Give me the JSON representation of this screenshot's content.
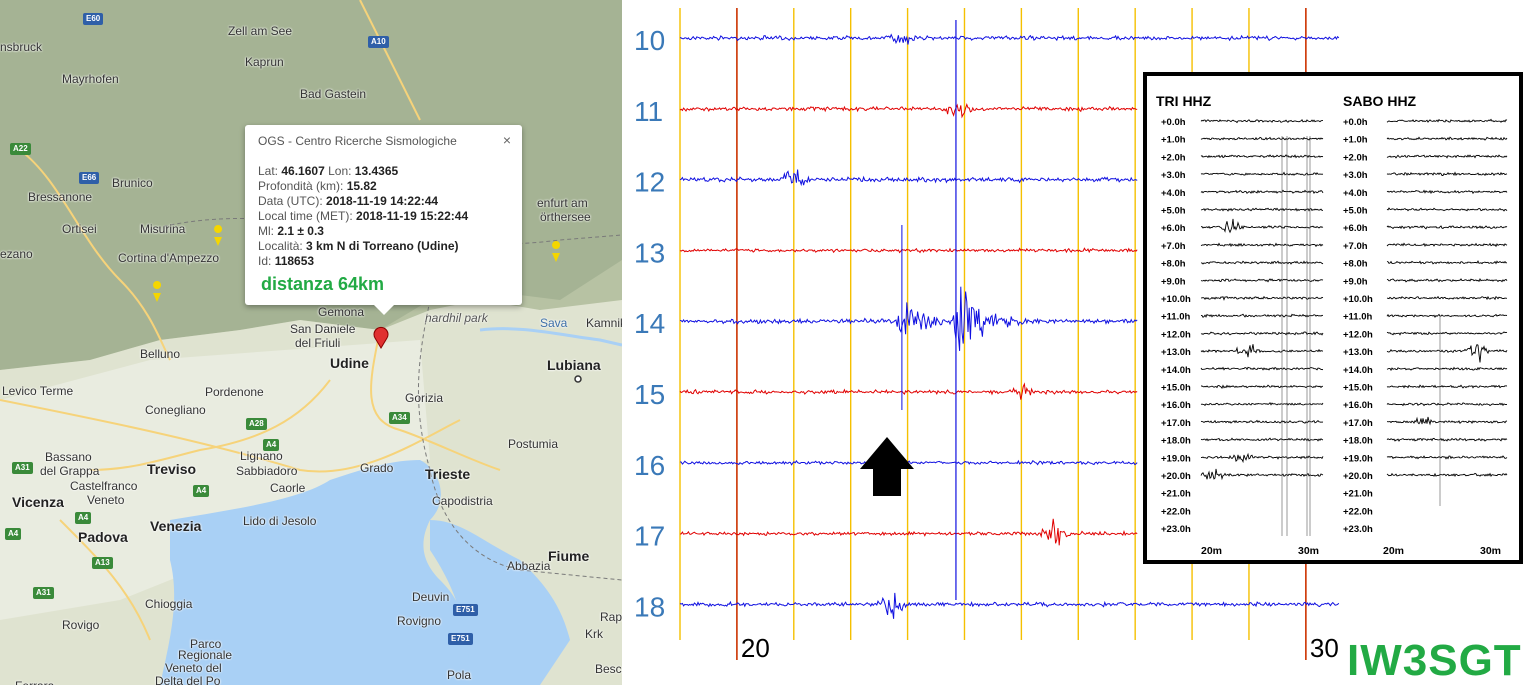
{
  "map": {
    "popup": {
      "title": "OGS - Centro Ricerche Sismologiche",
      "close": "×",
      "lat_label": "Lat:",
      "lat": "46.1607",
      "lon_label": "Lon:",
      "lon": "13.4365",
      "depth_label": "Profondità (km):",
      "depth": "15.82",
      "date_label": "Data (UTC):",
      "date": "2018-11-19 14:22:44",
      "local_label": "Local time (MET):",
      "local": "2018-11-19 15:22:44",
      "ml_label": "Ml:",
      "ml": "2.1 ± 0.3",
      "loc_label": "Località:",
      "loc": "3 km N di Torreano (Udine)",
      "id_label": "Id:",
      "id": "118653",
      "distance": "distanza 64km"
    },
    "places": [
      {
        "name": "nsbruck",
        "cls": ""
      },
      {
        "name": "Zell am See",
        "cls": ""
      },
      {
        "name": "Mayrhofen",
        "cls": ""
      },
      {
        "name": "Kaprun",
        "cls": ""
      },
      {
        "name": "Bad Gastein",
        "cls": ""
      },
      {
        "name": "Brunico",
        "cls": ""
      },
      {
        "name": "Bressanone",
        "cls": ""
      },
      {
        "name": "Ortisei",
        "cls": ""
      },
      {
        "name": "Misurina",
        "cls": ""
      },
      {
        "name": "Cortina d'Ampezzo",
        "cls": ""
      },
      {
        "name": "enfurt am",
        "cls": ""
      },
      {
        "name": "örthersee",
        "cls": ""
      },
      {
        "name": "Belluno",
        "cls": ""
      },
      {
        "name": "Gemona",
        "cls": ""
      },
      {
        "name": "San Daniele",
        "cls": ""
      },
      {
        "name": "del Friuli",
        "cls": ""
      },
      {
        "name": "Udine",
        "cls": "big"
      },
      {
        "name": "Lubiana",
        "cls": "big"
      },
      {
        "name": "Kamnik",
        "cls": ""
      },
      {
        "name": "Pordenone",
        "cls": ""
      },
      {
        "name": "Gorizia",
        "cls": ""
      },
      {
        "name": "Conegliano",
        "cls": ""
      },
      {
        "name": "Bassano",
        "cls": ""
      },
      {
        "name": "del Grappa",
        "cls": ""
      },
      {
        "name": "Treviso",
        "cls": "big"
      },
      {
        "name": "Lignano",
        "cls": ""
      },
      {
        "name": "Sabbiadoro",
        "cls": ""
      },
      {
        "name": "Grado",
        "cls": ""
      },
      {
        "name": "Caorle",
        "cls": ""
      },
      {
        "name": "Castelfranco",
        "cls": ""
      },
      {
        "name": "Veneto",
        "cls": ""
      },
      {
        "name": "Trieste",
        "cls": "big"
      },
      {
        "name": "Postumia",
        "cls": ""
      },
      {
        "name": "Capodistria",
        "cls": ""
      },
      {
        "name": "Vicenza",
        "cls": "big"
      },
      {
        "name": "Lido di Jesolo",
        "cls": ""
      },
      {
        "name": "Venezia",
        "cls": "big"
      },
      {
        "name": "Padova",
        "cls": "big"
      },
      {
        "name": "Chioggia",
        "cls": ""
      },
      {
        "name": "Abbazia",
        "cls": ""
      },
      {
        "name": "Fiume",
        "cls": "big"
      },
      {
        "name": "Rovigo",
        "cls": ""
      },
      {
        "name": "Rovigno",
        "cls": ""
      },
      {
        "name": "Parco",
        "cls": ""
      },
      {
        "name": "Regionale",
        "cls": ""
      },
      {
        "name": "Veneto del",
        "cls": ""
      },
      {
        "name": "Delta del Po",
        "cls": ""
      },
      {
        "name": "Pola",
        "cls": ""
      },
      {
        "name": "Krk",
        "cls": ""
      },
      {
        "name": "Ferrara",
        "cls": ""
      },
      {
        "name": "nardhil park",
        "cls": "italic"
      },
      {
        "name": "Sava",
        "cls": "sea"
      },
      {
        "name": "ezano",
        "cls": ""
      },
      {
        "name": "Levico Terme",
        "cls": ""
      },
      {
        "name": "Besca",
        "cls": ""
      },
      {
        "name": "Deuvin",
        "cls": ""
      },
      {
        "name": "Rap",
        "cls": ""
      }
    ],
    "shields": [
      "E60",
      "A10",
      "A22",
      "E66",
      "A28",
      "A4",
      "A34",
      "A4",
      "A31",
      "A4",
      "A13",
      "A31",
      "E751",
      "E751",
      "A4"
    ]
  },
  "chart_data": {
    "type": "line",
    "title": "",
    "colors": {
      "blue": "#1010e0",
      "red": "#e00000",
      "grid": "#f5c000",
      "minute_line": "#cc3300"
    },
    "xlabel": "",
    "ylabel": "",
    "x_ticks": [
      "20",
      "30"
    ],
    "xlim": [
      19,
      30.6
    ],
    "rows": [
      {
        "label": "10",
        "color": "blue",
        "amp": 0.35
      },
      {
        "label": "11",
        "color": "red",
        "amp": 0.35
      },
      {
        "label": "12",
        "color": "blue",
        "amp": 0.4
      },
      {
        "label": "13",
        "color": "red",
        "amp": 0.3
      },
      {
        "label": "14",
        "color": "blue",
        "amp": 0.4
      },
      {
        "label": "15",
        "color": "red",
        "amp": 0.35
      },
      {
        "label": "16",
        "color": "blue",
        "amp": 0.3
      },
      {
        "label": "17",
        "color": "red",
        "amp": 0.3
      },
      {
        "label": "18",
        "color": "blue",
        "amp": 0.35
      }
    ],
    "events": [
      {
        "row": "14",
        "minute": 22.9,
        "peak": 2.4
      },
      {
        "row": "14",
        "minute": 23.9,
        "peak": 5.0
      }
    ],
    "callsign": "IW3SGT",
    "inset": {
      "stations": [
        "TRI HHZ",
        "SABO HHZ"
      ],
      "hours": [
        "+0.0h",
        "+1.0h",
        "+2.0h",
        "+3.0h",
        "+4.0h",
        "+5.0h",
        "+6.0h",
        "+7.0h",
        "+8.0h",
        "+9.0h",
        "+10.0h",
        "+11.0h",
        "+12.0h",
        "+13.0h",
        "+14.0h",
        "+15.0h",
        "+16.0h",
        "+17.0h",
        "+18.0h",
        "+19.0h",
        "+20.0h",
        "+21.0h",
        "+22.0h",
        "+23.0h"
      ],
      "x_ticks": [
        "20m",
        "30m"
      ],
      "trace_hours": 21
    }
  }
}
